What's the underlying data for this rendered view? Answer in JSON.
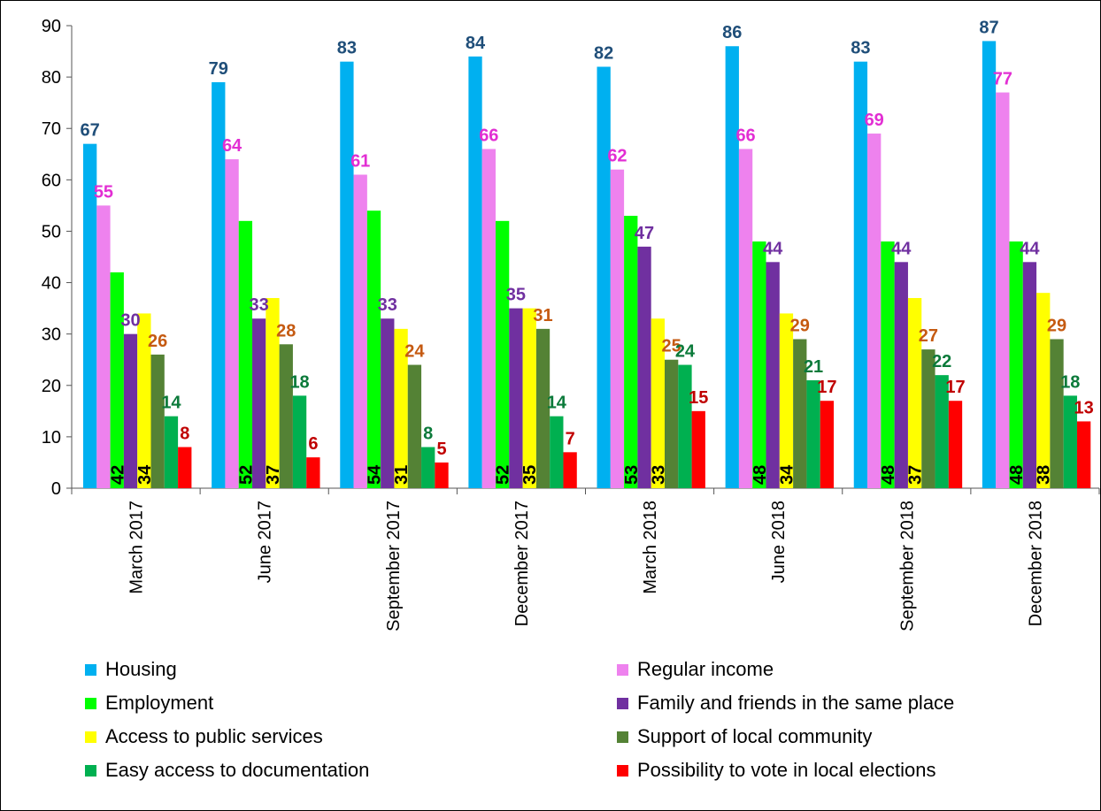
{
  "chart_data": {
    "type": "bar",
    "categories": [
      "March 2017",
      "June 2017",
      "September 2017",
      "December 2017",
      "March 2018",
      "June 2018",
      "September 2018",
      "December 2018"
    ],
    "ylim": [
      0,
      90
    ],
    "yticks": [
      0,
      10,
      20,
      30,
      40,
      50,
      60,
      70,
      80,
      90
    ],
    "grid": false,
    "legend_position": "bottom",
    "series": [
      {
        "name": "Housing",
        "color": "#00b0f0",
        "label_color": "#1f4e79",
        "label_position": "above",
        "values": [
          67,
          79,
          83,
          84,
          82,
          86,
          83,
          87
        ]
      },
      {
        "name": "Regular income",
        "color": "#ee82ee",
        "label_color": "#e22ed3",
        "label_position": "above",
        "values": [
          55,
          64,
          61,
          66,
          62,
          66,
          69,
          77
        ]
      },
      {
        "name": "Employment",
        "color": "#00ff00",
        "label_color": "#000000",
        "label_position": "inside-base",
        "values": [
          42,
          52,
          54,
          52,
          53,
          48,
          48,
          48
        ]
      },
      {
        "name": "Family and friends in the same place",
        "color": "#7030a0",
        "label_color": "#7030a0",
        "label_position": "above",
        "values": [
          30,
          33,
          33,
          35,
          47,
          44,
          44,
          44
        ]
      },
      {
        "name": "Access to public services",
        "color": "#ffff00",
        "label_color": "#000000",
        "label_position": "inside-base",
        "values": [
          34,
          37,
          31,
          35,
          33,
          34,
          37,
          38
        ]
      },
      {
        "name": "Support of local community",
        "color": "#548235",
        "label_color": "#c55a11",
        "label_position": "above",
        "values": [
          26,
          28,
          24,
          31,
          25,
          29,
          27,
          29
        ]
      },
      {
        "name": "Easy access to documentation",
        "color": "#00b050",
        "label_color": "#0b7a3a",
        "label_position": "above",
        "values": [
          14,
          18,
          8,
          14,
          24,
          21,
          22,
          18
        ]
      },
      {
        "name": "Possibility to vote in local elections",
        "color": "#ff0000",
        "label_color": "#c00000",
        "label_position": "above",
        "values": [
          8,
          6,
          5,
          7,
          15,
          17,
          17,
          13
        ]
      }
    ]
  }
}
